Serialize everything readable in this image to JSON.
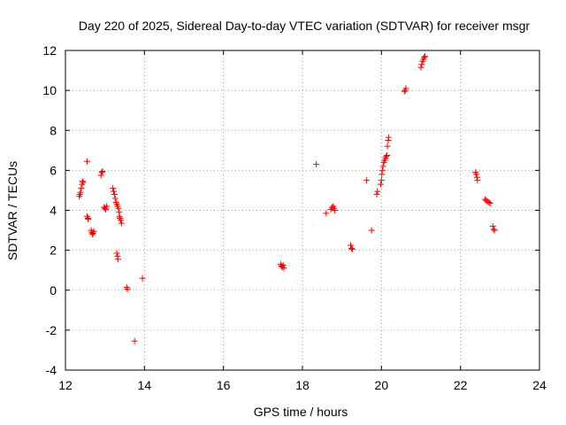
{
  "chart_data": {
    "type": "scatter",
    "title": "Day 220 of 2025, Sidereal Day-to-day VTEC variation (SDTVAR) for receiver msgr",
    "xlabel": "GPS time / hours",
    "ylabel": "SDTVAR / TECUs",
    "xlim": [
      12,
      24
    ],
    "ylim": [
      -4,
      12
    ],
    "xticks": [
      12,
      14,
      16,
      18,
      20,
      22,
      24
    ],
    "yticks": [
      -4,
      -2,
      0,
      2,
      4,
      6,
      8,
      10,
      12
    ],
    "grid": true,
    "marker": "+",
    "color": "#ff0000",
    "series": [
      {
        "name": "SDTVAR",
        "points": [
          [
            12.35,
            4.7
          ],
          [
            12.37,
            4.8
          ],
          [
            12.38,
            4.9
          ],
          [
            12.4,
            5.1
          ],
          [
            12.42,
            5.3
          ],
          [
            12.43,
            5.45
          ],
          [
            12.45,
            5.4
          ],
          [
            12.55,
            6.45
          ],
          [
            12.55,
            3.7
          ],
          [
            12.57,
            3.6
          ],
          [
            12.58,
            3.55
          ],
          [
            12.65,
            3.0
          ],
          [
            12.67,
            2.9
          ],
          [
            12.7,
            2.85
          ],
          [
            12.72,
            2.95
          ],
          [
            12.68,
            2.8
          ],
          [
            12.9,
            5.75
          ],
          [
            12.92,
            5.9
          ],
          [
            12.94,
            5.95
          ],
          [
            12.98,
            4.15
          ],
          [
            13.0,
            4.1
          ],
          [
            13.02,
            4.05
          ],
          [
            13.04,
            4.2
          ],
          [
            13.2,
            5.1
          ],
          [
            13.22,
            4.95
          ],
          [
            13.24,
            4.8
          ],
          [
            13.26,
            4.6
          ],
          [
            13.28,
            4.4
          ],
          [
            13.3,
            4.3
          ],
          [
            13.32,
            4.2
          ],
          [
            13.34,
            4.1
          ],
          [
            13.36,
            3.9
          ],
          [
            13.37,
            3.7
          ],
          [
            13.38,
            3.6
          ],
          [
            13.4,
            3.5
          ],
          [
            13.42,
            3.35
          ],
          [
            13.3,
            1.85
          ],
          [
            13.32,
            1.7
          ],
          [
            13.33,
            1.55
          ],
          [
            13.55,
            0.15
          ],
          [
            13.57,
            0.05
          ],
          [
            13.95,
            0.6
          ],
          [
            13.75,
            -2.55
          ],
          [
            17.45,
            1.3
          ],
          [
            17.47,
            1.2
          ],
          [
            17.49,
            1.15
          ],
          [
            17.51,
            1.25
          ],
          [
            17.53,
            1.1
          ],
          [
            18.35,
            6.3
          ],
          [
            18.6,
            3.85
          ],
          [
            18.72,
            4.05
          ],
          [
            18.75,
            4.15
          ],
          [
            18.78,
            4.2
          ],
          [
            18.8,
            4.1
          ],
          [
            18.82,
            4.0
          ],
          [
            19.22,
            2.25
          ],
          [
            19.24,
            2.1
          ],
          [
            19.26,
            2.05
          ],
          [
            19.62,
            5.5
          ],
          [
            19.75,
            3.0
          ],
          [
            19.88,
            4.8
          ],
          [
            19.9,
            4.95
          ],
          [
            19.98,
            5.3
          ],
          [
            20.0,
            5.5
          ],
          [
            20.01,
            5.8
          ],
          [
            20.02,
            6.0
          ],
          [
            20.04,
            6.2
          ],
          [
            20.06,
            6.4
          ],
          [
            20.08,
            6.5
          ],
          [
            20.1,
            6.6
          ],
          [
            20.12,
            6.7
          ],
          [
            20.14,
            6.75
          ],
          [
            20.15,
            7.2
          ],
          [
            20.17,
            7.5
          ],
          [
            20.18,
            7.65
          ],
          [
            20.58,
            9.95
          ],
          [
            20.6,
            10.0
          ],
          [
            20.62,
            10.1
          ],
          [
            21.0,
            11.15
          ],
          [
            21.02,
            11.3
          ],
          [
            21.04,
            11.45
          ],
          [
            21.06,
            11.55
          ],
          [
            21.08,
            11.65
          ],
          [
            21.1,
            11.7
          ],
          [
            22.38,
            5.9
          ],
          [
            22.4,
            5.8
          ],
          [
            22.42,
            5.65
          ],
          [
            22.43,
            5.5
          ],
          [
            22.62,
            4.55
          ],
          [
            22.65,
            4.5
          ],
          [
            22.68,
            4.45
          ],
          [
            22.72,
            4.4
          ],
          [
            22.75,
            4.35
          ],
          [
            22.82,
            3.2
          ],
          [
            22.84,
            3.05
          ],
          [
            22.86,
            3.0
          ]
        ]
      }
    ]
  }
}
